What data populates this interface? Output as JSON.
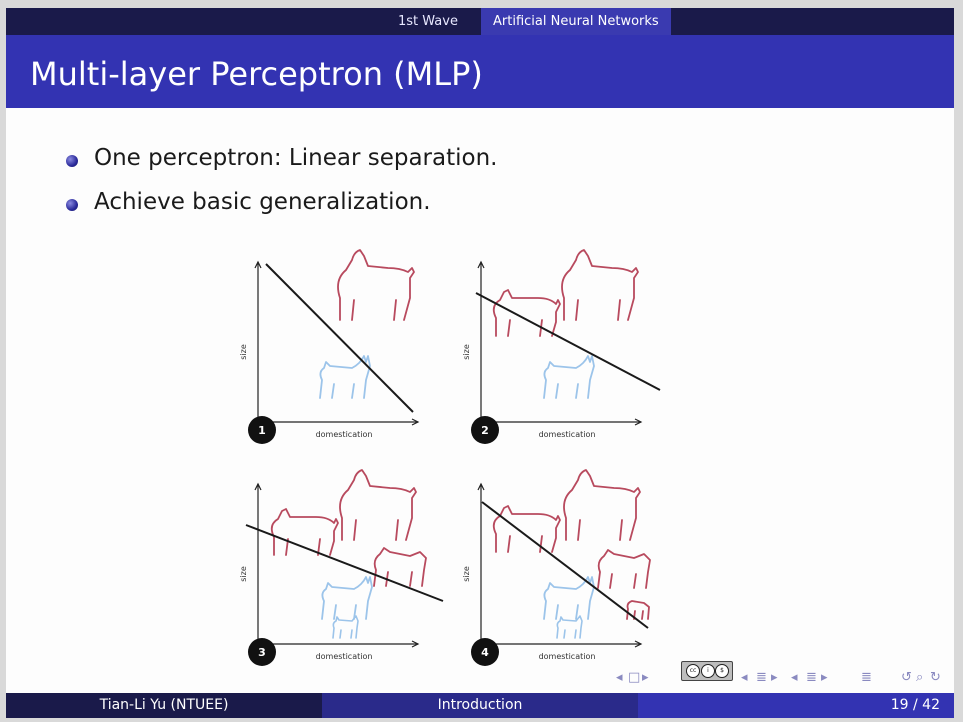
{
  "header": {
    "section_left": "1st Wave",
    "section_right": "Artificial Neural Networks"
  },
  "title": "Multi-layer Perceptron (MLP)",
  "bullets": [
    "One perceptron: Linear separation.",
    "Achieve basic generalization."
  ],
  "figure": {
    "panels": [
      {
        "number": "1",
        "xlabel": "domestication",
        "ylabel": "size"
      },
      {
        "number": "2",
        "xlabel": "domestication",
        "ylabel": "size"
      },
      {
        "number": "3",
        "xlabel": "domestication",
        "ylabel": "size"
      },
      {
        "number": "4",
        "xlabel": "domestication",
        "ylabel": "size"
      }
    ],
    "colors": {
      "dog": "#b84a5e",
      "cat": "#9cc4ea",
      "axis": "#222222",
      "line": "#1a1a1a"
    }
  },
  "footer": {
    "author": "Tian-Li Yu  (NTUEE)",
    "section": "Introduction",
    "page": "19 / 42"
  },
  "license_badge": {
    "text": "cc by",
    "icon": "creative-commons-icon"
  },
  "colors": {
    "title_bar": "#3333b2",
    "header_bar": "#1a1a4a",
    "bullet": "#2a2a9a"
  }
}
